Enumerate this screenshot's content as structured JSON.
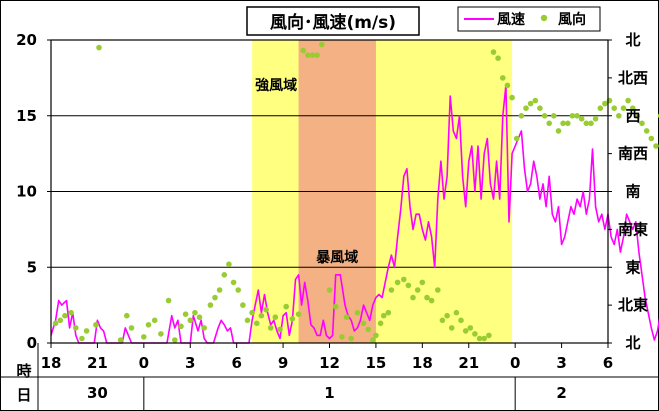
{
  "chart_data": {
    "type": "line",
    "title": "風向･風速(m/s)",
    "ylim": [
      0,
      20
    ],
    "y_ticks": [
      "0",
      "5",
      "10",
      "15",
      "20"
    ],
    "direction_labels": [
      "北",
      "北西",
      "西",
      "南西",
      "南",
      "南東",
      "東",
      "北東",
      "北"
    ],
    "x_row_label": "時",
    "day_row_label": "日",
    "x_hours": [
      "18",
      "21",
      "0",
      "3",
      "6",
      "9",
      "12",
      "15",
      "18",
      "21",
      "0",
      "3",
      "6"
    ],
    "days": [
      {
        "label": "30",
        "start": 0,
        "end": 6
      },
      {
        "label": "1",
        "start": 6,
        "end": 30
      },
      {
        "label": "2",
        "start": 30,
        "end": 36
      }
    ],
    "zones": [
      {
        "label": "強風域",
        "start": 13,
        "end": 29.8,
        "color": "#ffff80"
      },
      {
        "label": "暴風域",
        "start": 16,
        "end": 21,
        "color": "#f4b183"
      }
    ],
    "series": [
      {
        "name": "風速",
        "color": "#ff00ff",
        "kind": "line",
        "points": [
          [
            0,
            0.5
          ],
          [
            0.3,
            1.5
          ],
          [
            0.5,
            2.8
          ],
          [
            0.7,
            2.5
          ],
          [
            1.0,
            2.8
          ],
          [
            1.2,
            1.0
          ],
          [
            1.4,
            2.0
          ],
          [
            1.6,
            0.5
          ],
          [
            1.8,
            0
          ],
          [
            2.1,
            0
          ],
          [
            2.4,
            0
          ],
          [
            2.8,
            0
          ],
          [
            3.0,
            1.5
          ],
          [
            3.2,
            1.0
          ],
          [
            3.4,
            0.8
          ],
          [
            3.6,
            0
          ],
          [
            3.8,
            0
          ],
          [
            4.2,
            0
          ],
          [
            4.6,
            0
          ],
          [
            4.8,
            1.0
          ],
          [
            5.0,
            0.5
          ],
          [
            5.2,
            0
          ],
          [
            5.6,
            0
          ],
          [
            6.0,
            0
          ],
          [
            6.2,
            0
          ],
          [
            6.6,
            0
          ],
          [
            7.0,
            0
          ],
          [
            7.5,
            0
          ],
          [
            7.8,
            1.8
          ],
          [
            8.0,
            1.0
          ],
          [
            8.2,
            1.5
          ],
          [
            8.4,
            0
          ],
          [
            8.7,
            0
          ],
          [
            9.0,
            0
          ],
          [
            9.2,
            1.8
          ],
          [
            9.5,
            0.8
          ],
          [
            9.7,
            1.5
          ],
          [
            9.9,
            0.3
          ],
          [
            10.1,
            0
          ],
          [
            10.3,
            0
          ],
          [
            10.5,
            0
          ],
          [
            10.8,
            1.0
          ],
          [
            11.0,
            1.5
          ],
          [
            11.2,
            1.2
          ],
          [
            11.4,
            0.8
          ],
          [
            11.6,
            1.0
          ],
          [
            11.8,
            0
          ],
          [
            12.0,
            0
          ],
          [
            12.2,
            0
          ],
          [
            12.5,
            0
          ],
          [
            12.8,
            0
          ],
          [
            13.0,
            1.5
          ],
          [
            13.2,
            2.5
          ],
          [
            13.4,
            3.5
          ],
          [
            13.6,
            2.0
          ],
          [
            13.8,
            3.2
          ],
          [
            14.0,
            2.0
          ],
          [
            14.2,
            1.2
          ],
          [
            14.4,
            1.5
          ],
          [
            14.6,
            0.8
          ],
          [
            14.8,
            0.3
          ],
          [
            15.0,
            1.8
          ],
          [
            15.2,
            2.0
          ],
          [
            15.4,
            0.5
          ],
          [
            15.6,
            1.5
          ],
          [
            15.8,
            4.2
          ],
          [
            16.0,
            4.5
          ],
          [
            16.2,
            2.5
          ],
          [
            16.4,
            4.0
          ],
          [
            16.6,
            2.8
          ],
          [
            16.8,
            1.2
          ],
          [
            17.0,
            1.0
          ],
          [
            17.2,
            0.5
          ],
          [
            17.4,
            0.5
          ],
          [
            17.6,
            1.5
          ],
          [
            17.8,
            0.5
          ],
          [
            18.0,
            0.3
          ],
          [
            18.2,
            0.5
          ],
          [
            18.4,
            4.5
          ],
          [
            18.7,
            4.5
          ],
          [
            19.0,
            2.5
          ],
          [
            19.2,
            1.8
          ],
          [
            19.4,
            1.5
          ],
          [
            19.6,
            0.8
          ],
          [
            19.8,
            1.0
          ],
          [
            20.0,
            1.5
          ],
          [
            20.2,
            2.5
          ],
          [
            20.4,
            2.0
          ],
          [
            20.6,
            1.5
          ],
          [
            20.8,
            2.5
          ],
          [
            21.0,
            3.0
          ],
          [
            21.2,
            3.2
          ],
          [
            21.4,
            3.0
          ],
          [
            21.6,
            4.0
          ],
          [
            21.8,
            5.0
          ],
          [
            22.0,
            5.8
          ],
          [
            22.2,
            5.0
          ],
          [
            22.4,
            7.0
          ],
          [
            22.6,
            8.8
          ],
          [
            22.8,
            11.0
          ],
          [
            23.0,
            11.5
          ],
          [
            23.2,
            9.0
          ],
          [
            23.4,
            7.5
          ],
          [
            23.6,
            8.5
          ],
          [
            23.8,
            8.5
          ],
          [
            24.0,
            7.5
          ],
          [
            24.2,
            6.8
          ],
          [
            24.4,
            8.0
          ],
          [
            24.6,
            7.0
          ],
          [
            24.8,
            5.0
          ],
          [
            25.0,
            9.5
          ],
          [
            25.2,
            12.0
          ],
          [
            25.4,
            9.5
          ],
          [
            25.6,
            11.0
          ],
          [
            25.8,
            16.3
          ],
          [
            26.0,
            14.0
          ],
          [
            26.2,
            13.5
          ],
          [
            26.4,
            15.0
          ],
          [
            26.6,
            11.0
          ],
          [
            26.8,
            9.0
          ],
          [
            27.0,
            12.0
          ],
          [
            27.2,
            13.0
          ],
          [
            27.4,
            10.0
          ],
          [
            27.6,
            13.0
          ],
          [
            27.8,
            9.5
          ],
          [
            28.0,
            12.5
          ],
          [
            28.2,
            13.5
          ],
          [
            28.4,
            10.5
          ],
          [
            28.6,
            9.5
          ],
          [
            28.8,
            12.0
          ],
          [
            29.0,
            9.5
          ],
          [
            29.2,
            15.0
          ],
          [
            29.4,
            17.0
          ],
          [
            29.6,
            8.0
          ],
          [
            29.8,
            12.5
          ],
          [
            30.0,
            13.0
          ],
          [
            30.2,
            13.5
          ],
          [
            30.4,
            14.0
          ],
          [
            30.6,
            11.5
          ],
          [
            30.8,
            10.0
          ],
          [
            31.0,
            10.5
          ],
          [
            31.2,
            12.0
          ],
          [
            31.4,
            11.0
          ],
          [
            31.6,
            9.5
          ],
          [
            31.8,
            10.5
          ],
          [
            32.0,
            9.0
          ],
          [
            32.2,
            11.0
          ],
          [
            32.4,
            8.5
          ],
          [
            32.6,
            8.0
          ],
          [
            32.8,
            9.0
          ],
          [
            33.0,
            6.5
          ],
          [
            33.2,
            7.0
          ],
          [
            33.4,
            8.0
          ],
          [
            33.6,
            9.0
          ],
          [
            33.8,
            8.5
          ],
          [
            34.0,
            9.5
          ],
          [
            34.2,
            9.0
          ],
          [
            34.4,
            10.0
          ],
          [
            34.6,
            8.5
          ],
          [
            34.8,
            9.5
          ],
          [
            35.0,
            12.8
          ],
          [
            35.2,
            9.0
          ],
          [
            35.4,
            8.0
          ],
          [
            35.6,
            8.5
          ],
          [
            35.8,
            7.5
          ],
          [
            36.0,
            8.5
          ],
          [
            36.2,
            7.0
          ],
          [
            36.4,
            6.5
          ],
          [
            36.6,
            7.5
          ],
          [
            36.8,
            6.0
          ],
          [
            37.0,
            7.0
          ],
          [
            37.2,
            8.5
          ],
          [
            37.4,
            8.0
          ],
          [
            37.6,
            7.5
          ],
          [
            37.8,
            8.0
          ],
          [
            38.0,
            6.0
          ],
          [
            38.2,
            4.5
          ],
          [
            38.4,
            3.0
          ],
          [
            38.6,
            2.0
          ],
          [
            38.8,
            1.0
          ],
          [
            39.0,
            0.2
          ],
          [
            39.2,
            0.8
          ],
          [
            39.4,
            2.0
          ],
          [
            39.6,
            3.2
          ]
        ]
      },
      {
        "name": "風向",
        "color": "#99cc33",
        "kind": "scatter",
        "points": [
          [
            0.3,
            1.3
          ],
          [
            0.6,
            1.5
          ],
          [
            0.9,
            1.8
          ],
          [
            1.3,
            2.0
          ],
          [
            1.6,
            1.0
          ],
          [
            2.0,
            0.3
          ],
          [
            2.3,
            0.8
          ],
          [
            2.9,
            1.2
          ],
          [
            3.1,
            19.5
          ],
          [
            4.5,
            0.2
          ],
          [
            4.9,
            1.8
          ],
          [
            5.2,
            1.0
          ],
          [
            6.0,
            0.4
          ],
          [
            6.3,
            1.2
          ],
          [
            6.7,
            1.5
          ],
          [
            7.1,
            0.6
          ],
          [
            7.6,
            2.8
          ],
          [
            8.0,
            0.2
          ],
          [
            8.4,
            1.1
          ],
          [
            8.7,
            1.9
          ],
          [
            9.0,
            1.5
          ],
          [
            9.3,
            2.0
          ],
          [
            9.6,
            1.7
          ],
          [
            9.9,
            1.0
          ],
          [
            10.3,
            2.5
          ],
          [
            10.6,
            3.0
          ],
          [
            10.9,
            3.5
          ],
          [
            11.2,
            4.5
          ],
          [
            11.5,
            5.2
          ],
          [
            11.8,
            4.0
          ],
          [
            12.1,
            3.5
          ],
          [
            12.4,
            2.5
          ],
          [
            12.7,
            1.5
          ],
          [
            13.0,
            2.0
          ],
          [
            13.3,
            1.3
          ],
          [
            13.6,
            1.8
          ],
          [
            13.9,
            2.2
          ],
          [
            14.2,
            1.0
          ],
          [
            14.5,
            1.7
          ],
          [
            14.8,
            0.9
          ],
          [
            15.2,
            2.4
          ],
          [
            15.6,
            1.6
          ],
          [
            16.0,
            1.9
          ],
          [
            16.3,
            19.3
          ],
          [
            16.6,
            19.0
          ],
          [
            16.9,
            19.0
          ],
          [
            17.2,
            19.0
          ],
          [
            17.5,
            19.7
          ],
          [
            18.0,
            3.5
          ],
          [
            18.4,
            2.4
          ],
          [
            18.8,
            0.4
          ],
          [
            19.1,
            1.7
          ],
          [
            19.4,
            0.3
          ],
          [
            19.8,
            2.0
          ],
          [
            20.2,
            1.3
          ],
          [
            20.5,
            0.9
          ],
          [
            20.8,
            0.2
          ],
          [
            21.0,
            0.5
          ],
          [
            21.3,
            1.3
          ],
          [
            21.5,
            1.8
          ],
          [
            21.8,
            2.0
          ],
          [
            22.0,
            3.5
          ],
          [
            22.4,
            4.0
          ],
          [
            22.8,
            4.2
          ],
          [
            23.1,
            3.8
          ],
          [
            23.4,
            3.0
          ],
          [
            23.7,
            3.5
          ],
          [
            24.0,
            4.0
          ],
          [
            24.3,
            3.0
          ],
          [
            24.6,
            2.8
          ],
          [
            25.0,
            3.5
          ],
          [
            25.3,
            1.5
          ],
          [
            25.6,
            1.8
          ],
          [
            25.9,
            1.0
          ],
          [
            26.2,
            2.0
          ],
          [
            26.5,
            1.5
          ],
          [
            26.8,
            0.8
          ],
          [
            27.1,
            1.0
          ],
          [
            27.4,
            0.6
          ],
          [
            27.7,
            0.3
          ],
          [
            28.0,
            0.3
          ],
          [
            28.3,
            0.5
          ],
          [
            28.6,
            19.2
          ],
          [
            28.9,
            18.8
          ],
          [
            29.2,
            17.5
          ],
          [
            29.5,
            17.0
          ],
          [
            29.8,
            16.2
          ],
          [
            30.1,
            13.5
          ],
          [
            30.4,
            15.0
          ],
          [
            30.7,
            15.5
          ],
          [
            31.0,
            15.8
          ],
          [
            31.3,
            16.0
          ],
          [
            31.6,
            15.5
          ],
          [
            31.9,
            15.0
          ],
          [
            32.2,
            14.5
          ],
          [
            32.5,
            15.0
          ],
          [
            32.8,
            14.0
          ],
          [
            33.1,
            14.5
          ],
          [
            33.4,
            14.5
          ],
          [
            33.7,
            15.0
          ],
          [
            34.0,
            15.0
          ],
          [
            34.3,
            14.8
          ],
          [
            34.6,
            14.5
          ],
          [
            34.9,
            14.5
          ],
          [
            35.2,
            14.8
          ],
          [
            35.5,
            15.5
          ],
          [
            35.8,
            15.8
          ],
          [
            36.1,
            16.0
          ],
          [
            36.4,
            15.5
          ],
          [
            36.7,
            15.0
          ],
          [
            37.0,
            15.5
          ],
          [
            37.3,
            16.0
          ],
          [
            37.6,
            15.5
          ],
          [
            37.9,
            15.0
          ],
          [
            38.2,
            14.5
          ],
          [
            38.5,
            14.0
          ],
          [
            38.8,
            13.5
          ],
          [
            39.1,
            13.0
          ],
          [
            39.4,
            15.0
          ],
          [
            39.7,
            14.5
          ]
        ]
      }
    ]
  }
}
